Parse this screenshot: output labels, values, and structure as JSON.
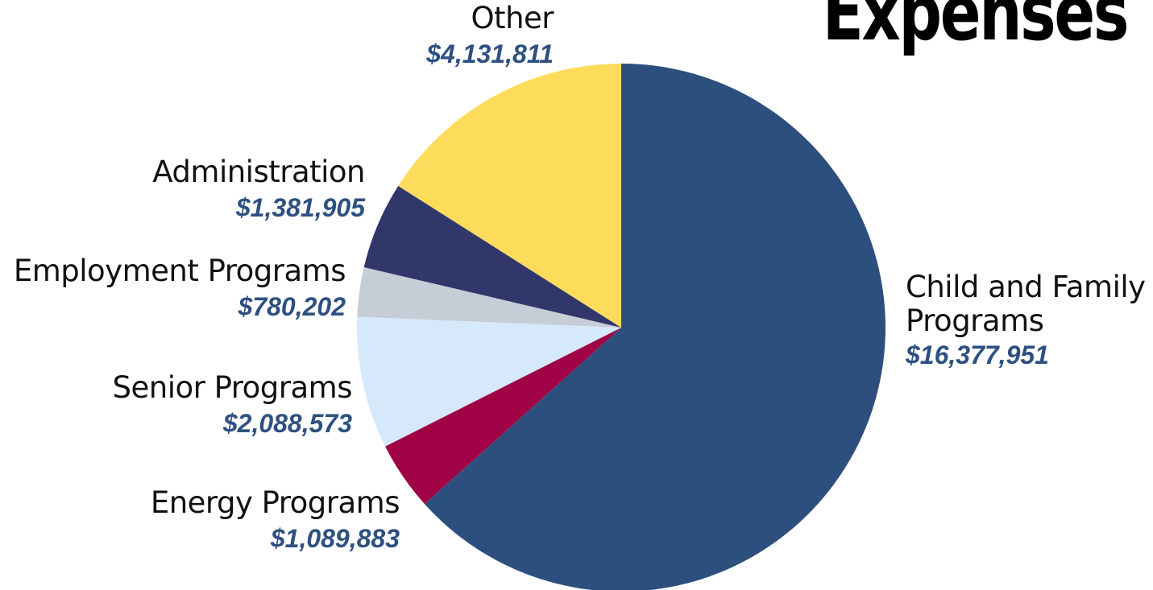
{
  "colors": {
    "child_family": "#2d4f7d",
    "energy": "#a10347",
    "senior": "#d6e9fb",
    "employment": "#c6cdd7",
    "administration": "#31376b",
    "other": "#fddc5c",
    "value_text": "#2e5081"
  },
  "chart_data": {
    "type": "pie",
    "title": "Expenses",
    "start_angle": "12 o'clock, clockwise",
    "slices": [
      {
        "label": "Child and Family Programs",
        "value_label": "$16,377,951",
        "value": 16377951,
        "color": "#2d4f7d"
      },
      {
        "label": "Energy Programs",
        "value_label": "$1,089,883",
        "value": 1089883,
        "color": "#a10347"
      },
      {
        "label": "Senior Programs",
        "value_label": "$2,088,573",
        "value": 2088573,
        "color": "#d6e9fb"
      },
      {
        "label": "Employment Programs",
        "value_label": "$780,202",
        "value": 780202,
        "color": "#c6cdd7"
      },
      {
        "label": "Administration",
        "value_label": "$1,381,905",
        "value": 1381905,
        "color": "#31376b"
      },
      {
        "label": "Other",
        "value_label": "$4,131,811",
        "value": 4131811,
        "color": "#fddc5c"
      }
    ]
  },
  "labels": {
    "child_family_line1": "Child and Family",
    "child_family_line2": "Programs"
  }
}
